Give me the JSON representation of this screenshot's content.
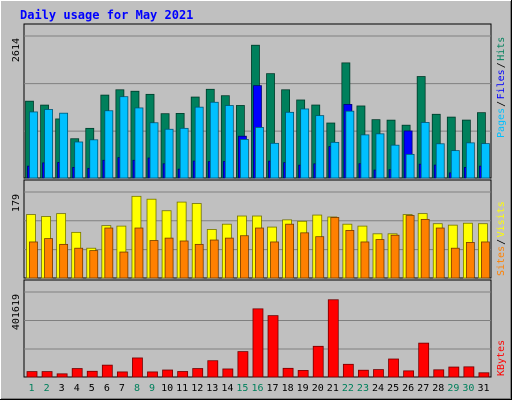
{
  "chart_data": {
    "type": "bar",
    "title": "Daily usage for May 2021",
    "categories": [
      "1",
      "2",
      "3",
      "4",
      "5",
      "6",
      "7",
      "8",
      "9",
      "10",
      "11",
      "12",
      "13",
      "14",
      "15",
      "16",
      "17",
      "18",
      "19",
      "20",
      "21",
      "22",
      "23",
      "24",
      "25",
      "26",
      "27",
      "28",
      "29",
      "30",
      "31"
    ],
    "weekend_days": [
      "1",
      "2",
      "8",
      "9",
      "15",
      "16",
      "22",
      "23",
      "29",
      "30"
    ],
    "panels": [
      {
        "name": "hits_files_pages",
        "scale_label": "2614",
        "ylim": [
          0,
          2614
        ],
        "series": [
          {
            "name": "Hits",
            "color": "#00805c",
            "values": [
              1414,
              1342,
              1087,
              723,
              914,
              1526,
              1624,
              1597,
              1540,
              1184,
              1189,
              1490,
              1633,
              1515,
              1335,
              2444,
              1921,
              1624,
              1436,
              1343,
              1012,
              2119,
              1326,
              1074,
              1065,
              972,
              1868,
              1173,
              1121,
              1066,
              1203
            ]
          },
          {
            "name": "Files",
            "color": "#0000ff",
            "values": [
              218,
              278,
              286,
              195,
              178,
              326,
              375,
              326,
              368,
              262,
              163,
              311,
              302,
              304,
              769,
              1700,
              310,
              283,
              236,
              261,
              579,
              1354,
              263,
              146,
              153,
              866,
              254,
              238,
              94,
              195,
              218
            ]
          },
          {
            "name": "Pages",
            "color": "#00c0ff",
            "values": [
              1216,
              1261,
              1193,
              663,
              703,
              1238,
              1497,
              1290,
              1017,
              897,
              914,
              1304,
              1394,
              1334,
              710,
              931,
              638,
              1209,
              1271,
              1148,
              656,
              1230,
              794,
              813,
              604,
              435,
              1022,
              630,
              504,
              647,
              633
            ]
          }
        ]
      },
      {
        "name": "visits_sites",
        "scale_label": "179",
        "ylim": [
          0,
          179
        ],
        "series": [
          {
            "name": "Visits",
            "color": "#ffff00",
            "values": [
              132,
              128,
              134,
              95,
              62,
              109,
              108,
              170,
              164,
              140,
              158,
              155,
              101,
              112,
              129,
              129,
              106,
              121,
              118,
              131,
              127,
              112,
              108,
              92,
              92,
              132,
              134,
              113,
              110,
              114,
              113
            ]
          },
          {
            "name": "Sites",
            "color": "#ff8000",
            "values": [
              75,
              82,
              70,
              62,
              57,
              104,
              54,
              104,
              78,
              83,
              77,
              70,
              79,
              83,
              88,
              104,
              75,
              112,
              94,
              86,
              126,
              99,
              75,
              80,
              89,
              130,
              122,
              104,
              62,
              74,
              75
            ]
          }
        ]
      },
      {
        "name": "kbytes",
        "scale_label": "401619",
        "ylim": [
          0,
          401619
        ],
        "series": [
          {
            "name": "KBytes",
            "color": "#ff0000",
            "values": [
              25614,
              25614,
              15000,
              40000,
              27000,
              56000,
              24000,
              90000,
              24000,
              33000,
              26000,
              40000,
              77000,
              38000,
              120000,
              322000,
              290000,
              41000,
              31000,
              145000,
              365000,
              60000,
              32000,
              35000,
              85000,
              29000,
              160000,
              34000,
              47000,
              48000,
              20000
            ]
          }
        ]
      }
    ],
    "legend": [
      {
        "text": "Pages",
        "color": "#00c0ff"
      },
      {
        "text": "Files",
        "color": "#0000ff"
      },
      {
        "text": "Hits",
        "color": "#00805c"
      },
      {
        "text": "Sites",
        "color": "#ff8000"
      },
      {
        "text": "Visits",
        "color": "#ffff00"
      },
      {
        "text": "KBytes",
        "color": "#ff0000"
      }
    ],
    "legend_separator": "/",
    "colors": {
      "background": "#c0c0c0",
      "title": "#0000ff",
      "weekday_label": "#000000",
      "weekend_label": "#00805c",
      "grid": "#808080"
    }
  }
}
